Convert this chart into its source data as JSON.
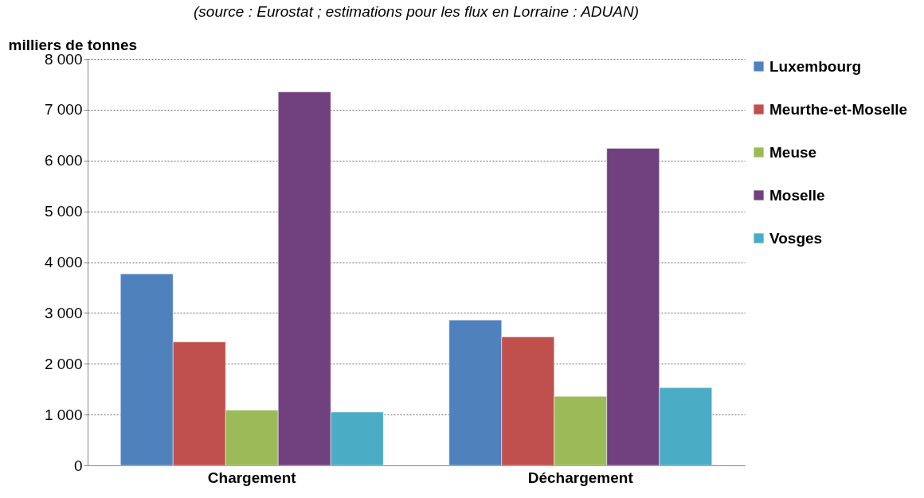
{
  "chart_data": {
    "type": "bar",
    "subtitle": "(source : Eurostat ; estimations pour les flux en Lorraine : ADUAN)",
    "ylabel": "milliers de tonnes",
    "categories": [
      "Chargement",
      "Déchargement"
    ],
    "series": [
      {
        "name": "Luxembourg",
        "color": "#4f81bd",
        "values": [
          3770,
          2860
        ]
      },
      {
        "name": "Meurthe-et-Moselle",
        "color": "#c0504d",
        "values": [
          2430,
          2530
        ]
      },
      {
        "name": "Meuse",
        "color": "#9bbb59",
        "values": [
          1090,
          1360
        ]
      },
      {
        "name": "Moselle",
        "color": "#71407f",
        "values": [
          7350,
          6240
        ]
      },
      {
        "name": "Vosges",
        "color": "#4bacc6",
        "values": [
          1050,
          1530
        ]
      }
    ],
    "ylim": [
      0,
      8000
    ],
    "yticks": [
      0,
      {
        "value": 1000,
        "label": "1 000"
      },
      {
        "value": 2000,
        "label": "2 000"
      },
      {
        "value": 3000,
        "label": "3 000"
      },
      {
        "value": 4000,
        "label": "4 000"
      },
      {
        "value": 5000,
        "label": "5 000"
      },
      {
        "value": 6000,
        "label": "6 000"
      },
      {
        "value": 7000,
        "label": "7 000"
      },
      {
        "value": 8000,
        "label": "8 000"
      }
    ],
    "grid": "y",
    "legend": "right"
  }
}
